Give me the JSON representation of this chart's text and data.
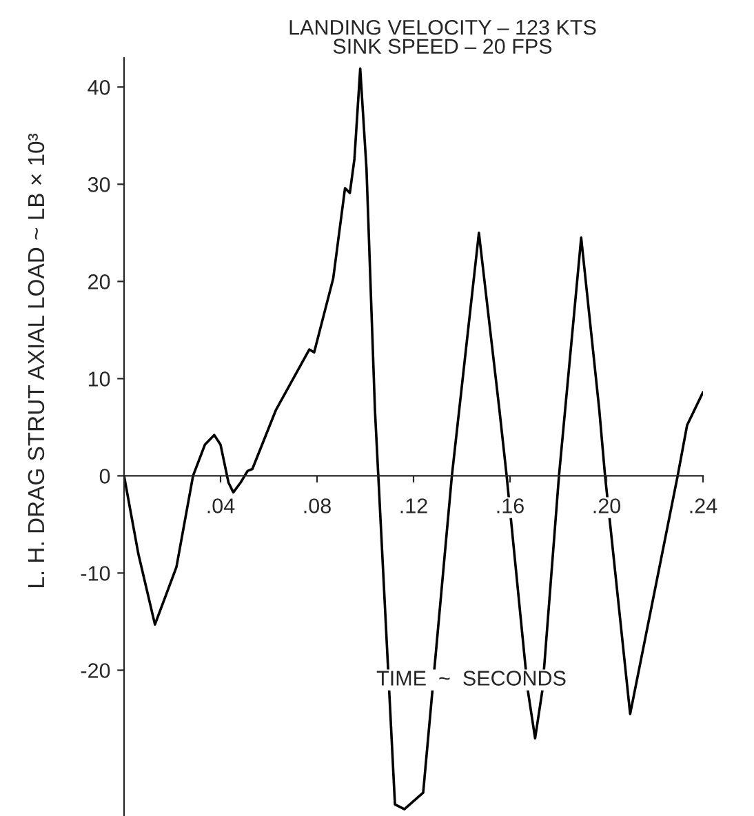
{
  "chart_data": {
    "type": "line",
    "title": "LANDING VELOCITY – 123 KTS\nSINK SPEED – 20 FPS",
    "xlabel": "TIME  ~  SECONDS",
    "ylabel": "L. H. DRAG STRUT AXIAL LOAD ~ LB × 10³",
    "series": [
      {
        "color": "#000000",
        "x": [
          0,
          0.0059,
          0.0128,
          0.0217,
          0.0286,
          0.0335,
          0.0374,
          0.04,
          0.0433,
          0.0453,
          0.0483,
          0.0512,
          0.0532,
          0.063,
          0.0768,
          0.0788,
          0.0867,
          0.0916,
          0.0936,
          0.0955,
          0.0979,
          0.1005,
          0.104,
          0.1054,
          0.1123,
          0.1162,
          0.124,
          0.1359,
          0.1471,
          0.1556,
          0.1586,
          0.1674,
          0.1704,
          0.1734,
          0.1803,
          0.1895,
          0.197,
          0.1994,
          0.2098,
          0.2295,
          0.2334,
          0.24
        ],
        "values": [
          0,
          -8.0,
          -15.3,
          -9.4,
          0,
          3.2,
          4.2,
          3.2,
          -0.7,
          -1.7,
          -0.7,
          0.5,
          0.7,
          6.8,
          13.0,
          12.7,
          20.3,
          29.6,
          29.1,
          32.6,
          41.9,
          31.6,
          6.8,
          0,
          -33.8,
          -34.3,
          -32.6,
          0,
          25.0,
          6.8,
          0,
          -22.1,
          -27.0,
          -22.1,
          0,
          24.5,
          6.8,
          0,
          -24.5,
          0,
          5.2,
          8.6
        ]
      }
    ],
    "xlim": [
      0,
      0.24
    ],
    "ylim": [
      -35,
      43
    ],
    "xticks": [
      {
        "value": 0.04,
        "label": ".04"
      },
      {
        "value": 0.08,
        "label": ".08"
      },
      {
        "value": 0.12,
        "label": ".12"
      },
      {
        "value": 0.16,
        "label": ".16"
      },
      {
        "value": 0.2,
        "label": ".20"
      },
      {
        "value": 0.24,
        "label": ".24"
      }
    ],
    "yticks": [
      -20,
      -10,
      0,
      10,
      20,
      30,
      40
    ],
    "grid": false,
    "legend": false,
    "marker": "none",
    "line_style": "solid"
  }
}
